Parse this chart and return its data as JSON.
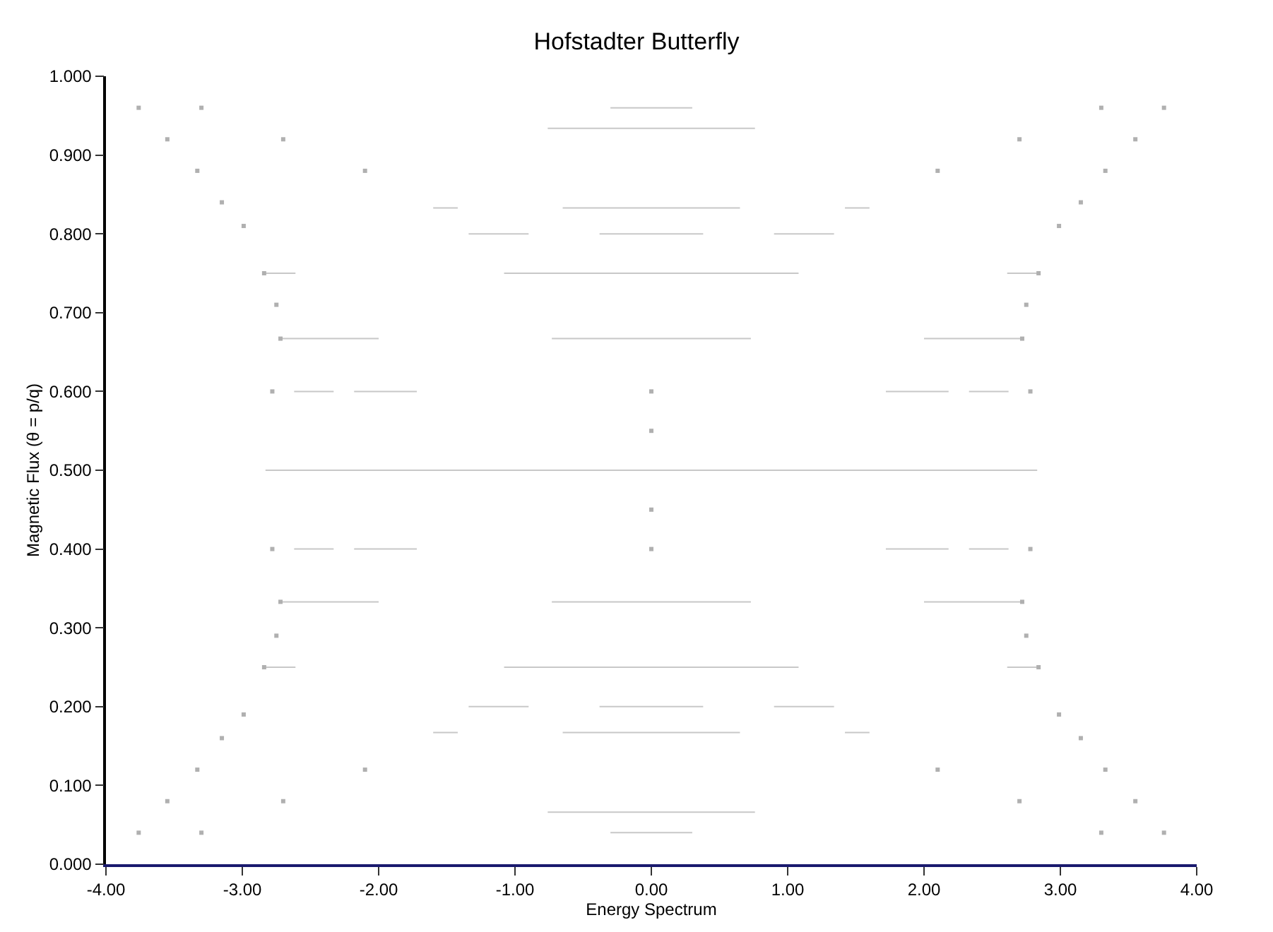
{
  "chart_data": {
    "type": "line",
    "title": "Hofstadter Butterfly",
    "xlabel": "Energy Spectrum",
    "ylabel": "Magnetic Flux (θ = p/q)",
    "xlim": [
      -4,
      4
    ],
    "ylim": [
      0,
      1
    ],
    "xticks": [
      {
        "value": -4,
        "label": "-4.00"
      },
      {
        "value": -3,
        "label": "-3.00"
      },
      {
        "value": -2,
        "label": "-2.00"
      },
      {
        "value": -1,
        "label": "-1.00"
      },
      {
        "value": 0,
        "label": "0.00"
      },
      {
        "value": 1,
        "label": "1.00"
      },
      {
        "value": 2,
        "label": "2.00"
      },
      {
        "value": 3,
        "label": "3.00"
      },
      {
        "value": 4,
        "label": "4.00"
      }
    ],
    "yticks": [
      {
        "value": 0,
        "label": "0.000"
      },
      {
        "value": 0.1,
        "label": "0.100"
      },
      {
        "value": 0.2,
        "label": "0.200"
      },
      {
        "value": 0.3,
        "label": "0.300"
      },
      {
        "value": 0.4,
        "label": "0.400"
      },
      {
        "value": 0.5,
        "label": "0.500"
      },
      {
        "value": 0.6,
        "label": "0.600"
      },
      {
        "value": 0.7,
        "label": "0.700"
      },
      {
        "value": 0.8,
        "label": "0.800"
      },
      {
        "value": 0.9,
        "label": "0.900"
      },
      {
        "value": 1,
        "label": "1.000"
      }
    ],
    "series": [
      {
        "color": "#c8c8c8",
        "x": [
          -2.83,
          2.83
        ],
        "values": [
          0.5,
          0.5
        ]
      },
      {
        "color": "#c8c8c8",
        "x": [
          -2.73,
          -2.0
        ],
        "values": [
          0.333,
          0.333
        ]
      },
      {
        "color": "#c8c8c8",
        "x": [
          -0.73,
          0.73
        ],
        "values": [
          0.333,
          0.333
        ]
      },
      {
        "color": "#c8c8c8",
        "x": [
          2.0,
          2.73
        ],
        "values": [
          0.333,
          0.333
        ]
      },
      {
        "color": "#c8c8c8",
        "x": [
          -2.73,
          -2.0
        ],
        "values": [
          0.667,
          0.667
        ]
      },
      {
        "color": "#c8c8c8",
        "x": [
          -0.73,
          0.73
        ],
        "values": [
          0.667,
          0.667
        ]
      },
      {
        "color": "#c8c8c8",
        "x": [
          2.0,
          2.73
        ],
        "values": [
          0.667,
          0.667
        ]
      },
      {
        "color": "#c8c8c8",
        "x": [
          -2.84,
          -2.61
        ],
        "values": [
          0.25,
          0.25
        ]
      },
      {
        "color": "#c8c8c8",
        "x": [
          -1.08,
          1.08
        ],
        "values": [
          0.25,
          0.25
        ]
      },
      {
        "color": "#c8c8c8",
        "x": [
          2.61,
          2.84
        ],
        "values": [
          0.25,
          0.25
        ]
      },
      {
        "color": "#c8c8c8",
        "x": [
          -2.84,
          -2.61
        ],
        "values": [
          0.75,
          0.75
        ]
      },
      {
        "color": "#c8c8c8",
        "x": [
          -1.08,
          1.08
        ],
        "values": [
          0.75,
          0.75
        ]
      },
      {
        "color": "#c8c8c8",
        "x": [
          2.61,
          2.84
        ],
        "values": [
          0.75,
          0.75
        ]
      },
      {
        "color": "#c8c8c8",
        "x": [
          -1.34,
          -0.9
        ],
        "values": [
          0.2,
          0.2
        ]
      },
      {
        "color": "#c8c8c8",
        "x": [
          -0.38,
          0.38
        ],
        "values": [
          0.2,
          0.2
        ]
      },
      {
        "color": "#c8c8c8",
        "x": [
          0.9,
          1.34
        ],
        "values": [
          0.2,
          0.2
        ]
      },
      {
        "color": "#c8c8c8",
        "x": [
          -1.34,
          -0.9
        ],
        "values": [
          0.8,
          0.8
        ]
      },
      {
        "color": "#c8c8c8",
        "x": [
          -0.38,
          0.38
        ],
        "values": [
          0.8,
          0.8
        ]
      },
      {
        "color": "#c8c8c8",
        "x": [
          0.9,
          1.34
        ],
        "values": [
          0.8,
          0.8
        ]
      },
      {
        "color": "#c8c8c8",
        "x": [
          -2.62,
          -2.33
        ],
        "values": [
          0.4,
          0.4
        ]
      },
      {
        "color": "#c8c8c8",
        "x": [
          -2.18,
          -1.72
        ],
        "values": [
          0.4,
          0.4
        ]
      },
      {
        "color": "#c8c8c8",
        "x": [
          1.72,
          2.18
        ],
        "values": [
          0.4,
          0.4
        ]
      },
      {
        "color": "#c8c8c8",
        "x": [
          2.33,
          2.62
        ],
        "values": [
          0.4,
          0.4
        ]
      },
      {
        "color": "#c8c8c8",
        "x": [
          -2.62,
          -2.33
        ],
        "values": [
          0.6,
          0.6
        ]
      },
      {
        "color": "#c8c8c8",
        "x": [
          -2.18,
          -1.72
        ],
        "values": [
          0.6,
          0.6
        ]
      },
      {
        "color": "#c8c8c8",
        "x": [
          1.72,
          2.18
        ],
        "values": [
          0.6,
          0.6
        ]
      },
      {
        "color": "#c8c8c8",
        "x": [
          2.33,
          2.62
        ],
        "values": [
          0.6,
          0.6
        ]
      },
      {
        "color": "#c8c8c8",
        "x": [
          -1.6,
          -1.42
        ],
        "values": [
          0.167,
          0.167
        ]
      },
      {
        "color": "#c8c8c8",
        "x": [
          -0.65,
          0.65
        ],
        "values": [
          0.167,
          0.167
        ]
      },
      {
        "color": "#c8c8c8",
        "x": [
          1.42,
          1.6
        ],
        "values": [
          0.167,
          0.167
        ]
      },
      {
        "color": "#c8c8c8",
        "x": [
          -1.6,
          -1.42
        ],
        "values": [
          0.833,
          0.833
        ]
      },
      {
        "color": "#c8c8c8",
        "x": [
          -0.65,
          0.65
        ],
        "values": [
          0.833,
          0.833
        ]
      },
      {
        "color": "#c8c8c8",
        "x": [
          1.42,
          1.6
        ],
        "values": [
          0.833,
          0.833
        ]
      },
      {
        "color": "#c8c8c8",
        "x": [
          -0.76,
          0.76
        ],
        "values": [
          0.066,
          0.066
        ]
      },
      {
        "color": "#c8c8c8",
        "x": [
          -0.76,
          0.76
        ],
        "values": [
          0.934,
          0.934
        ]
      },
      {
        "color": "#c8c8c8",
        "x": [
          -0.3,
          0.3
        ],
        "values": [
          0.04,
          0.04
        ]
      },
      {
        "color": "#c8c8c8",
        "x": [
          -0.3,
          0.3
        ],
        "values": [
          0.96,
          0.96
        ]
      },
      {
        "type": "scatter",
        "color": "#b0b0b0",
        "marker": "square",
        "x": [
          -3.76,
          -3.55,
          -3.33,
          -3.15,
          -2.99,
          -2.84,
          -2.75,
          -2.72,
          -2.78,
          -3.76,
          -3.55,
          -3.33,
          -3.15,
          -2.99,
          -2.84,
          -2.75,
          -2.72,
          -2.78,
          3.76,
          3.55,
          3.33,
          3.15,
          2.99,
          2.84,
          2.75,
          2.72,
          2.78,
          3.76,
          3.55,
          3.33,
          3.15,
          2.99,
          2.84,
          2.75,
          2.72,
          2.78,
          -3.3,
          -2.7,
          -2.1,
          -3.3,
          -2.7,
          -2.1,
          3.3,
          2.7,
          2.1,
          3.3,
          2.7,
          2.1,
          0,
          0,
          0,
          0
        ],
        "values": [
          0.04,
          0.08,
          0.12,
          0.16,
          0.19,
          0.25,
          0.29,
          0.333,
          0.4,
          0.96,
          0.92,
          0.88,
          0.84,
          0.81,
          0.75,
          0.71,
          0.667,
          0.6,
          0.04,
          0.08,
          0.12,
          0.16,
          0.19,
          0.25,
          0.29,
          0.333,
          0.4,
          0.96,
          0.92,
          0.88,
          0.84,
          0.81,
          0.75,
          0.71,
          0.667,
          0.6,
          0.04,
          0.08,
          0.12,
          0.96,
          0.92,
          0.88,
          0.04,
          0.08,
          0.12,
          0.96,
          0.92,
          0.88,
          0.4,
          0.45,
          0.55,
          0.6
        ]
      }
    ]
  }
}
